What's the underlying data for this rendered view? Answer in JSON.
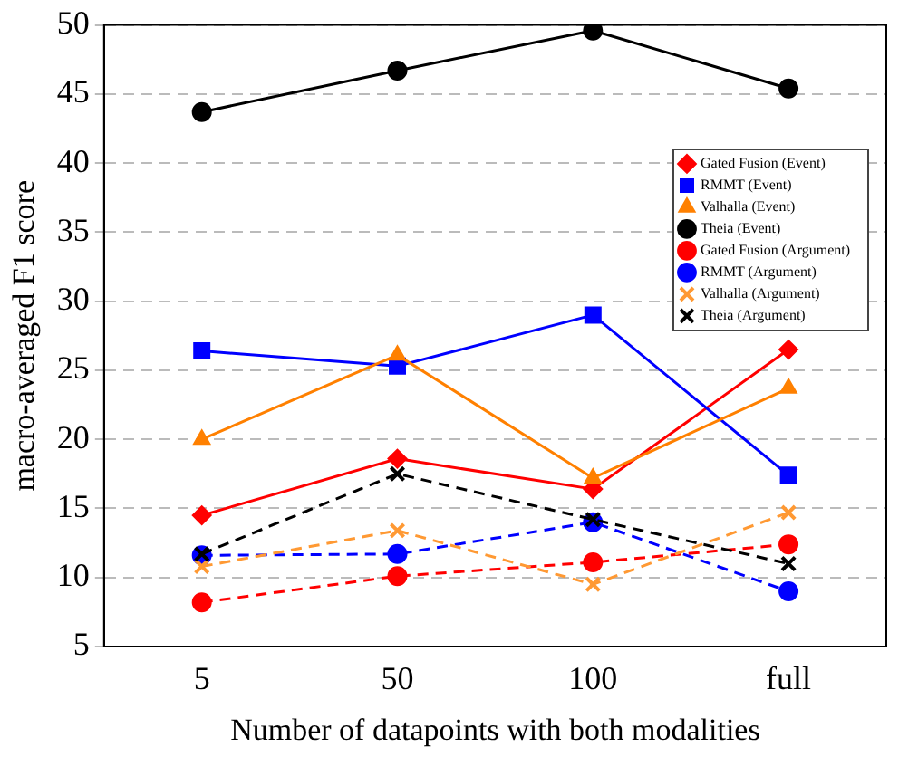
{
  "chart_data": {
    "type": "line",
    "xlabel": "Number of datapoints with both modalities",
    "ylabel": "macro-averaged F1 score",
    "categories": [
      "5",
      "50",
      "100",
      "full"
    ],
    "ylim": [
      5,
      50
    ],
    "yticks": [
      5,
      10,
      15,
      20,
      25,
      30,
      35,
      40,
      45,
      50
    ],
    "grid": "y",
    "legend": "top right",
    "series": [
      {
        "name": "Gated Fusion (Event)",
        "color": "#ff0000",
        "marker": "diamond",
        "line_style": "solid",
        "values": [
          14.5,
          18.6,
          16.4,
          26.5
        ]
      },
      {
        "name": "RMMT (Event)",
        "color": "#0000ff",
        "marker": "square",
        "line_style": "solid",
        "values": [
          26.4,
          25.3,
          29.0,
          17.4
        ]
      },
      {
        "name": "Valhalla (Event)",
        "color": "#ff8000",
        "marker": "triangle",
        "line_style": "solid",
        "values": [
          20.0,
          26.1,
          17.2,
          23.7
        ]
      },
      {
        "name": "Theia (Event)",
        "color": "#000000",
        "marker": "circle",
        "line_style": "solid",
        "values": [
          43.7,
          46.7,
          49.6,
          45.4
        ]
      },
      {
        "name": "Gated Fusion (Argument)",
        "color": "#ff0000",
        "marker": "circle",
        "line_style": "dashed",
        "values": [
          8.2,
          10.1,
          11.1,
          12.4
        ]
      },
      {
        "name": "RMMT (Argument)",
        "color": "#0000ff",
        "marker": "circle",
        "line_style": "dashed",
        "values": [
          11.6,
          11.7,
          14.0,
          9.0
        ]
      },
      {
        "name": "Valhalla (Argument)",
        "color": "#ff9933",
        "marker": "cross",
        "line_style": "dashed",
        "values": [
          10.8,
          13.4,
          9.5,
          14.7
        ]
      },
      {
        "name": "Theia (Argument)",
        "color": "#000000",
        "marker": "cross",
        "line_style": "dashed",
        "values": [
          11.7,
          17.5,
          14.2,
          11.0
        ]
      }
    ]
  }
}
